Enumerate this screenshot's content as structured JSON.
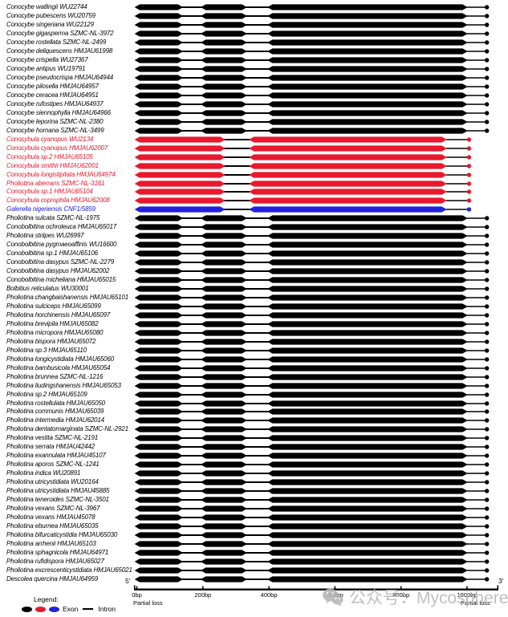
{
  "chart_data": {
    "type": "gene-structure-diagram",
    "axis": {
      "five_prime": "5'",
      "three_prime": "3'",
      "tick_labels": [
        "0bp",
        "200bp",
        "400bp",
        "600bp",
        "800bp",
        "1000bp"
      ],
      "tick_bp": [
        0,
        200,
        400,
        600,
        800,
        1000
      ],
      "partial_loss_left": "Partial loss",
      "partial_loss_right": "Partial loss"
    },
    "patterns": {
      "full": {
        "exons": [
          [
            -7,
            140
          ],
          [
            193,
            334
          ],
          [
            395,
            1002
          ]
        ],
        "dot": 1060
      },
      "fused": {
        "exons": [
          [
            -7,
            268
          ],
          [
            339,
            939
          ]
        ],
        "dot": 1006
      }
    },
    "rows": [
      {
        "label": "Conocybe watlingii WU22744",
        "color": "black",
        "pattern": "full"
      },
      {
        "label": "Conocybe pubescens WU20759",
        "color": "black",
        "pattern": "full"
      },
      {
        "label": "Conocybe singeriana WU22129",
        "color": "black",
        "pattern": "full"
      },
      {
        "label": "Conocybe gigasperma SZMC-NL-3972",
        "color": "black",
        "pattern": "full"
      },
      {
        "label": "Conocybe rostellata SZMC-NL-2499",
        "color": "black",
        "pattern": "full"
      },
      {
        "label": "Conocybe deliquescens HMJAU61998",
        "color": "black",
        "pattern": "full"
      },
      {
        "label": "Conocybe crispella WU27367",
        "color": "black",
        "pattern": "full"
      },
      {
        "label": "Conocybe antipus WU19791",
        "color": "black",
        "pattern": "full"
      },
      {
        "label": "Conocybe pseudocrispa HMJAU64944",
        "color": "black",
        "pattern": "full"
      },
      {
        "label": "Conocybe pilosella HMJAU64957",
        "color": "black",
        "pattern": "full"
      },
      {
        "label": "Conocybe ceracea HMJAU64951",
        "color": "black",
        "pattern": "full"
      },
      {
        "label": "Conocybe rufostipes HMJAU64937",
        "color": "black",
        "pattern": "full"
      },
      {
        "label": "Conocybe siennophylla HMJAU64966",
        "color": "black",
        "pattern": "full"
      },
      {
        "label": "Conocybe leporina SZMC-NL-2380",
        "color": "black",
        "pattern": "full"
      },
      {
        "label": "Conocybe hornana SZMC-NL-3499",
        "color": "black",
        "pattern": "full"
      },
      {
        "label": "Conocybula cyanopus WU2134",
        "color": "red",
        "pattern": "fused"
      },
      {
        "label": "Conocybula cyanopus HMJAU62007",
        "color": "red",
        "pattern": "fused"
      },
      {
        "label": "Conocybula sp.2 HMJAU65105",
        "color": "red",
        "pattern": "fused"
      },
      {
        "label": "Conocybula smithii HMJAU62001",
        "color": "red",
        "pattern": "fused"
      },
      {
        "label": "Conocybula longistipitata HMJAU64974",
        "color": "red",
        "pattern": "fused"
      },
      {
        "label": "Pholiotina aberrans SZMC-NL-3161",
        "color": "red",
        "pattern": "fused"
      },
      {
        "label": "Conocybula sp.1 HMJAU65104",
        "color": "red",
        "pattern": "fused"
      },
      {
        "label": "Conocybula coprophila HMJAU62008",
        "color": "red",
        "pattern": "fused"
      },
      {
        "label": "Galerella nigeriensis CNF1/5859",
        "color": "blue",
        "pattern": "fused"
      },
      {
        "label": "Pholiotina sulcata SZMC-NL-1975",
        "color": "black",
        "pattern": "full"
      },
      {
        "label": "Conobolbitina ochroleuca HMJAU65017",
        "color": "black",
        "pattern": "full"
      },
      {
        "label": "Pholiotina striipes WU26997",
        "color": "black",
        "pattern": "full"
      },
      {
        "label": "Conobolbitina pygmaeoaffinis WU16600",
        "color": "black",
        "pattern": "full"
      },
      {
        "label": "Conobolbitina sp.1 HMJAU65106",
        "color": "black",
        "pattern": "full"
      },
      {
        "label": "Conobolbitina dasypus SZMC-NL-2279",
        "color": "black",
        "pattern": "full"
      },
      {
        "label": "Conobolbitina dasypus HMJAU62002",
        "color": "black",
        "pattern": "full"
      },
      {
        "label": "Conobolbitina micheliana HMJAU65015",
        "color": "black",
        "pattern": "full"
      },
      {
        "label": "Bolbitius reticulatus WU30001",
        "color": "black",
        "pattern": "full"
      },
      {
        "label": "Pholiotina changbaishanensis HMJAU65101",
        "color": "black",
        "pattern": "full"
      },
      {
        "label": "Pholiotina sulciceps HMJAU65099",
        "color": "black",
        "pattern": "full"
      },
      {
        "label": "Pholiotina horchinensis HMJAU65097",
        "color": "black",
        "pattern": "full"
      },
      {
        "label": "Pholiotina brevipila HMJAU65082",
        "color": "black",
        "pattern": "full"
      },
      {
        "label": "Pholiotina micropora HMJAU65080",
        "color": "black",
        "pattern": "full"
      },
      {
        "label": "Pholiotina bispora HMJAU65072",
        "color": "black",
        "pattern": "full"
      },
      {
        "label": "Pholiotina sp.3 HMJAU65110",
        "color": "black",
        "pattern": "full"
      },
      {
        "label": "Pholiotina longicystidiata HMJAU65060",
        "color": "black",
        "pattern": "full"
      },
      {
        "label": "Pholiotina bambusicola HMJAU65054",
        "color": "black",
        "pattern": "full"
      },
      {
        "label": "Pholiotina brunnea SZMC-NL-1216",
        "color": "black",
        "pattern": "full"
      },
      {
        "label": "Pholiotina liudingshanensis HMJAU65053",
        "color": "black",
        "pattern": "full"
      },
      {
        "label": "Pholiotina sp.2 HMJAU65109",
        "color": "black",
        "pattern": "full"
      },
      {
        "label": "Pholiotina rostellulata HMJAU65050",
        "color": "black",
        "pattern": "full"
      },
      {
        "label": "Pholiotina communis HMJAU65039",
        "color": "black",
        "pattern": "full"
      },
      {
        "label": "Pholiotina intermedia HMJAU62014",
        "color": "black",
        "pattern": "full"
      },
      {
        "label": "Pholiotina dentatomarginata SZMC-NL-2921",
        "color": "black",
        "pattern": "full"
      },
      {
        "label": "Pholiotina vestita SZMC-NL-2191",
        "color": "black",
        "pattern": "full"
      },
      {
        "label": "Pholiotina serrata HMJAU42442",
        "color": "black",
        "pattern": "full"
      },
      {
        "label": "Pholiotina exannulata HMJAU45107",
        "color": "black",
        "pattern": "full"
      },
      {
        "label": "Pholiotina aporos SZMC-NL-1241",
        "color": "black",
        "pattern": "full"
      },
      {
        "label": "Pholiotina indica WU20891",
        "color": "black",
        "pattern": "full"
      },
      {
        "label": "Pholiotina utricystidiata WU20164",
        "color": "black",
        "pattern": "full"
      },
      {
        "label": "Pholiotina utricystidiata HMJAU45885",
        "color": "black",
        "pattern": "full"
      },
      {
        "label": "Pholiotina teneroides SZMC-NL-3501",
        "color": "black",
        "pattern": "full"
      },
      {
        "label": "Pholiotina vexans SZMC-NL-3967",
        "color": "black",
        "pattern": "full"
      },
      {
        "label": "Pholiotina vexans HMJAU45078",
        "color": "black",
        "pattern": "full"
      },
      {
        "label": "Pholiotina eburnea HMJAU65035",
        "color": "black",
        "pattern": "full"
      },
      {
        "label": "Pholiotina bifurcaticystidia HMJAU65030",
        "color": "black",
        "pattern": "full"
      },
      {
        "label": "Pholiotina arrhenii HMJAU65103",
        "color": "black",
        "pattern": "full"
      },
      {
        "label": "Pholiotina sphagnicola HMJAU64971",
        "color": "black",
        "pattern": "full"
      },
      {
        "label": "Pholiotina rufidispora HMJAU65027",
        "color": "black",
        "pattern": "full"
      },
      {
        "label": "Pholiotina excrescenticystidiata HMJAU65021",
        "color": "black",
        "pattern": "full"
      },
      {
        "label": "Descolea quercina HMJAU64959",
        "color": "black",
        "pattern": "full"
      }
    ]
  },
  "colors": {
    "black": "#000000",
    "red": "#e8192d",
    "blue": "#2121de"
  },
  "legend": {
    "title": "Legend:",
    "exon_label": "Exon",
    "intron_label": "Intron",
    "exon_colors": [
      "#000000",
      "#e8192d",
      "#2121de"
    ],
    "intron_color": "#000000"
  },
  "watermark": {
    "text": "公众号：Mycosphere"
  }
}
